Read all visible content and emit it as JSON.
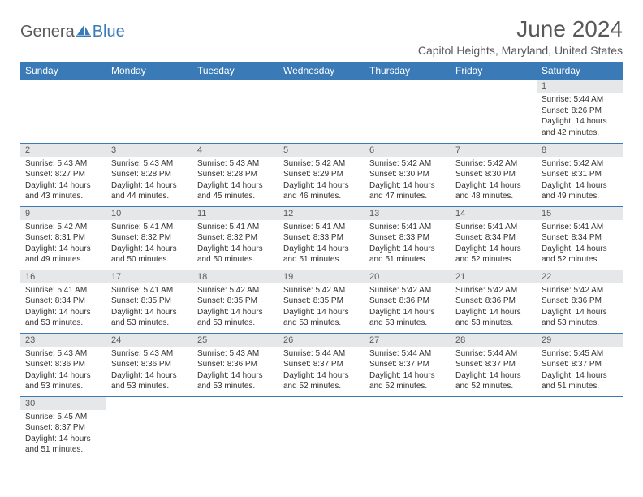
{
  "brand": {
    "part1": "Genera",
    "part2": "Blue"
  },
  "title": "June 2024",
  "location": "Capitol Heights, Maryland, United States",
  "colors": {
    "header_bg": "#3a7ab7",
    "header_text": "#ffffff",
    "daynum_bg": "#e6e7e8",
    "text_muted": "#58595b",
    "border": "#3a7ab7"
  },
  "weekdays": [
    "Sunday",
    "Monday",
    "Tuesday",
    "Wednesday",
    "Thursday",
    "Friday",
    "Saturday"
  ],
  "labels": {
    "sunrise": "Sunrise:",
    "sunset": "Sunset:",
    "daylight": "Daylight:"
  },
  "weeks": [
    [
      null,
      null,
      null,
      null,
      null,
      null,
      {
        "n": 1,
        "rise": "5:44 AM",
        "set": "8:26 PM",
        "dl": "14 hours and 42 minutes."
      }
    ],
    [
      {
        "n": 2,
        "rise": "5:43 AM",
        "set": "8:27 PM",
        "dl": "14 hours and 43 minutes."
      },
      {
        "n": 3,
        "rise": "5:43 AM",
        "set": "8:28 PM",
        "dl": "14 hours and 44 minutes."
      },
      {
        "n": 4,
        "rise": "5:43 AM",
        "set": "8:28 PM",
        "dl": "14 hours and 45 minutes."
      },
      {
        "n": 5,
        "rise": "5:42 AM",
        "set": "8:29 PM",
        "dl": "14 hours and 46 minutes."
      },
      {
        "n": 6,
        "rise": "5:42 AM",
        "set": "8:30 PM",
        "dl": "14 hours and 47 minutes."
      },
      {
        "n": 7,
        "rise": "5:42 AM",
        "set": "8:30 PM",
        "dl": "14 hours and 48 minutes."
      },
      {
        "n": 8,
        "rise": "5:42 AM",
        "set": "8:31 PM",
        "dl": "14 hours and 49 minutes."
      }
    ],
    [
      {
        "n": 9,
        "rise": "5:42 AM",
        "set": "8:31 PM",
        "dl": "14 hours and 49 minutes."
      },
      {
        "n": 10,
        "rise": "5:41 AM",
        "set": "8:32 PM",
        "dl": "14 hours and 50 minutes."
      },
      {
        "n": 11,
        "rise": "5:41 AM",
        "set": "8:32 PM",
        "dl": "14 hours and 50 minutes."
      },
      {
        "n": 12,
        "rise": "5:41 AM",
        "set": "8:33 PM",
        "dl": "14 hours and 51 minutes."
      },
      {
        "n": 13,
        "rise": "5:41 AM",
        "set": "8:33 PM",
        "dl": "14 hours and 51 minutes."
      },
      {
        "n": 14,
        "rise": "5:41 AM",
        "set": "8:34 PM",
        "dl": "14 hours and 52 minutes."
      },
      {
        "n": 15,
        "rise": "5:41 AM",
        "set": "8:34 PM",
        "dl": "14 hours and 52 minutes."
      }
    ],
    [
      {
        "n": 16,
        "rise": "5:41 AM",
        "set": "8:34 PM",
        "dl": "14 hours and 53 minutes."
      },
      {
        "n": 17,
        "rise": "5:41 AM",
        "set": "8:35 PM",
        "dl": "14 hours and 53 minutes."
      },
      {
        "n": 18,
        "rise": "5:42 AM",
        "set": "8:35 PM",
        "dl": "14 hours and 53 minutes."
      },
      {
        "n": 19,
        "rise": "5:42 AM",
        "set": "8:35 PM",
        "dl": "14 hours and 53 minutes."
      },
      {
        "n": 20,
        "rise": "5:42 AM",
        "set": "8:36 PM",
        "dl": "14 hours and 53 minutes."
      },
      {
        "n": 21,
        "rise": "5:42 AM",
        "set": "8:36 PM",
        "dl": "14 hours and 53 minutes."
      },
      {
        "n": 22,
        "rise": "5:42 AM",
        "set": "8:36 PM",
        "dl": "14 hours and 53 minutes."
      }
    ],
    [
      {
        "n": 23,
        "rise": "5:43 AM",
        "set": "8:36 PM",
        "dl": "14 hours and 53 minutes."
      },
      {
        "n": 24,
        "rise": "5:43 AM",
        "set": "8:36 PM",
        "dl": "14 hours and 53 minutes."
      },
      {
        "n": 25,
        "rise": "5:43 AM",
        "set": "8:36 PM",
        "dl": "14 hours and 53 minutes."
      },
      {
        "n": 26,
        "rise": "5:44 AM",
        "set": "8:37 PM",
        "dl": "14 hours and 52 minutes."
      },
      {
        "n": 27,
        "rise": "5:44 AM",
        "set": "8:37 PM",
        "dl": "14 hours and 52 minutes."
      },
      {
        "n": 28,
        "rise": "5:44 AM",
        "set": "8:37 PM",
        "dl": "14 hours and 52 minutes."
      },
      {
        "n": 29,
        "rise": "5:45 AM",
        "set": "8:37 PM",
        "dl": "14 hours and 51 minutes."
      }
    ],
    [
      {
        "n": 30,
        "rise": "5:45 AM",
        "set": "8:37 PM",
        "dl": "14 hours and 51 minutes."
      },
      null,
      null,
      null,
      null,
      null,
      null
    ]
  ]
}
